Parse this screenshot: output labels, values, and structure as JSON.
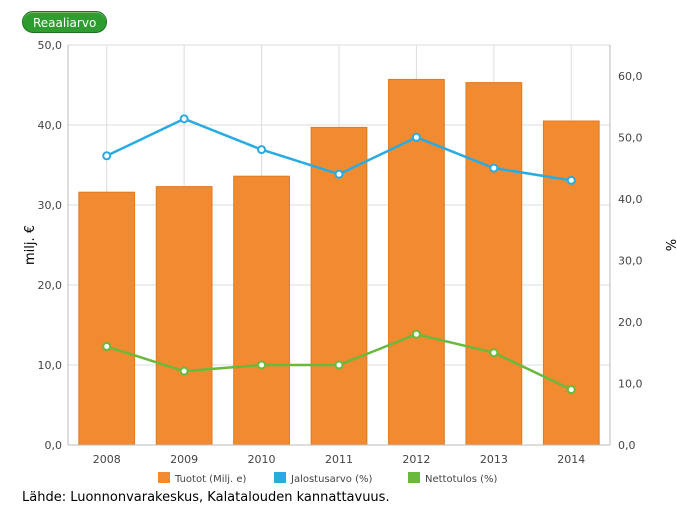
{
  "toggle": {
    "label": "Reaaliarvo"
  },
  "source": "Lähde: Luonnonvarakeskus, Kalatalouden kannattavuus.",
  "colors": {
    "bar": "#f28a30",
    "bar_edge": "#e07a20",
    "jalostus": "#29abe2",
    "netto": "#6ab93c",
    "grid": "#dddddd",
    "axis_text": "#444444"
  },
  "chart_data": {
    "type": "bar",
    "categories": [
      "2008",
      "2009",
      "2010",
      "2011",
      "2012",
      "2013",
      "2014"
    ],
    "ylabel_left": "milj. €",
    "ylabel_right": "%",
    "ylim_left": [
      0,
      50
    ],
    "ylim_right": [
      0,
      65
    ],
    "yticks_left": [
      "0,0",
      "10,0",
      "20,0",
      "30,0",
      "40,0",
      "50,0"
    ],
    "yticks_right": [
      "0,0",
      "10,0",
      "20,0",
      "30,0",
      "40,0",
      "50,0",
      "60,0"
    ],
    "grid": true,
    "legend_position": "bottom",
    "series": [
      {
        "name": "Tuotot (Milj. e)",
        "type": "bar",
        "axis": "left",
        "values": [
          31.6,
          32.3,
          33.6,
          39.7,
          45.7,
          45.3,
          40.5
        ]
      },
      {
        "name": "Jalostusarvo (%)",
        "type": "line",
        "axis": "right",
        "values": [
          47.0,
          53.0,
          48.0,
          44.0,
          50.0,
          45.0,
          43.0
        ]
      },
      {
        "name": "Nettotulos (%)",
        "type": "line",
        "axis": "right",
        "values": [
          16.0,
          12.0,
          13.0,
          13.0,
          18.0,
          15.0,
          9.0
        ]
      }
    ]
  }
}
